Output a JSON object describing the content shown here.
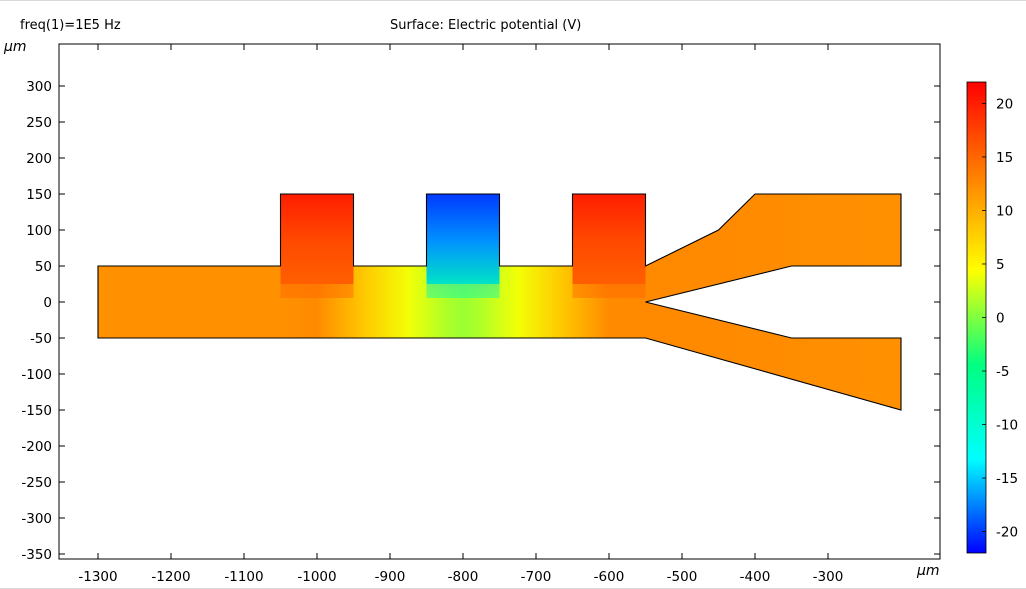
{
  "header": {
    "freq_label": "freq(1)=1E5 Hz",
    "title": "Surface: Electric potential (V)"
  },
  "axes": {
    "x_unit": "μm",
    "y_unit": "μm"
  },
  "chart_data": {
    "type": "heatmap",
    "title": "Surface: Electric potential (V)",
    "subtitle": "freq(1)=1E5 Hz",
    "xlabel": "μm",
    "ylabel": "μm",
    "xlim": [
      -1355,
      -45
    ],
    "ylim": [
      -355,
      355
    ],
    "x_ticks": [
      -1300,
      -1200,
      -1100,
      -1000,
      -900,
      -800,
      -700,
      -600,
      -500,
      -400,
      -300
    ],
    "y_ticks": [
      300,
      250,
      200,
      150,
      100,
      50,
      0,
      -50,
      -100,
      -150,
      -200,
      -250,
      -300,
      -350
    ],
    "grid": false,
    "geometry_outline": [
      [
        -1300,
        50
      ],
      [
        -1050,
        50
      ],
      [
        -1050,
        150
      ],
      [
        -950,
        150
      ],
      [
        -950,
        50
      ],
      [
        -850,
        50
      ],
      [
        -850,
        150
      ],
      [
        -750,
        150
      ],
      [
        -750,
        50
      ],
      [
        -650,
        50
      ],
      [
        -650,
        150
      ],
      [
        -550,
        150
      ],
      [
        -550,
        50
      ],
      [
        -450,
        100
      ],
      [
        -400,
        150
      ],
      [
        -200,
        150
      ],
      [
        -200,
        50
      ],
      [
        -350,
        50
      ],
      [
        -550,
        0
      ],
      [
        -350,
        -50
      ],
      [
        -200,
        -50
      ],
      [
        -200,
        -150
      ],
      [
        -550,
        -50
      ],
      [
        -1300,
        -50
      ]
    ],
    "electrodes": [
      {
        "x": [
          -1050,
          -950
        ],
        "y": [
          50,
          150
        ],
        "potential": 20
      },
      {
        "x": [
          -850,
          -750
        ],
        "y": [
          50,
          150
        ],
        "potential": -20
      },
      {
        "x": [
          -650,
          -550
        ],
        "y": [
          50,
          150
        ],
        "potential": 20
      }
    ],
    "field_potential": {
      "x": [
        -1300,
        -1050,
        -1000,
        -940,
        -875,
        -820,
        -800,
        -780,
        -725,
        -660,
        -600,
        -550,
        -450,
        -200
      ],
      "value": [
        12,
        12,
        12.5,
        8.5,
        4,
        1.5,
        1,
        1.5,
        4,
        8.5,
        12.5,
        12.5,
        12.5,
        12
      ]
    },
    "colorbar": {
      "min": -22,
      "max": 22,
      "ticks": [
        20,
        15,
        10,
        5,
        0,
        -5,
        -10,
        -15,
        -20
      ],
      "colormap": [
        "#0000ff",
        "#00ffff",
        "#00ff80",
        "#ffff00",
        "#ff8000",
        "#ff0000"
      ]
    }
  }
}
